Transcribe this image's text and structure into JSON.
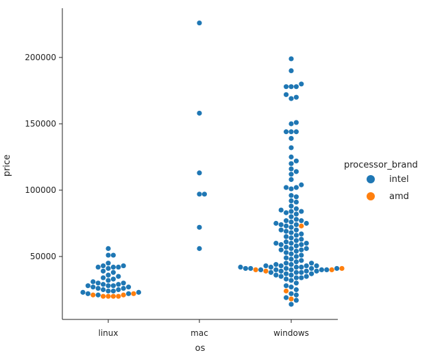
{
  "chart_data": {
    "type": "scatter",
    "subtype": "swarm",
    "title": "",
    "xlabel": "os",
    "ylabel": "price",
    "categories": [
      "linux",
      "mac",
      "windows"
    ],
    "ylim": [
      10000,
      235000
    ],
    "yticks": [
      50000,
      100000,
      150000,
      200000
    ],
    "ytick_labels": [
      "50000",
      "100000",
      "150000",
      "200000"
    ],
    "legend": {
      "title": "processor_brand",
      "position": "right",
      "entries": [
        {
          "name": "intel",
          "color": "#1f77b4"
        },
        {
          "name": "amd",
          "color": "#ff7f0e"
        }
      ]
    },
    "series": [
      {
        "name": "intel",
        "color": "#1f77b4",
        "points": [
          {
            "os": "linux",
            "values": [
              56000,
              51000,
              51000,
              45000,
              43000,
              43000,
              42000,
              42000,
              42000,
              41000,
              39000,
              38000,
              36000,
              35000,
              34000,
              33000,
              32000,
              31000,
              30000,
              30000,
              29000,
              29000,
              28000,
              28000,
              28000,
              27000,
              27000,
              26000,
              26000,
              25000,
              25000,
              24000,
              24000,
              23000,
              23000,
              22000,
              22000,
              21000
            ]
          },
          {
            "os": "mac",
            "values": [
              226000,
              158000,
              113000,
              97000,
              97000,
              72000,
              56000
            ]
          },
          {
            "os": "windows",
            "values": [
              199000,
              190000,
              180000,
              178000,
              178000,
              178000,
              172000,
              170000,
              169000,
              151000,
              150000,
              144000,
              144000,
              144000,
              139000,
              132000,
              125000,
              122000,
              120000,
              116000,
              114000,
              112000,
              108000,
              104000,
              102000,
              102000,
              101000,
              96000,
              95000,
              92000,
              91000,
              88000,
              86000,
              85000,
              84000,
              84000,
              83000,
              82000,
              80000,
              78000,
              77000,
              77000,
              76000,
              75000,
              75000,
              74000,
              74000,
              73000,
              72000,
              70000,
              70000,
              69000,
              68000,
              67000,
              66000,
              65000,
              64000,
              63000,
              62000,
              61000,
              60000,
              60000,
              60000,
              59000,
              59000,
              58000,
              57000,
              56000,
              56000,
              55000,
              55000,
              54000,
              53000,
              52000,
              51000,
              50000,
              49000,
              48000,
              47000,
              46000,
              45000,
              45000,
              44000,
              44000,
              43000,
              43000,
              43000,
              43000,
              42000,
              42000,
              42000,
              42000,
              41000,
              41000,
              41000,
              41000,
              41000,
              40000,
              40000,
              40000,
              40000,
              40000,
              39000,
              39000,
              39000,
              38000,
              38000,
              38000,
              37000,
              37000,
              36000,
              36000,
              35000,
              35000,
              34000,
              34000,
              33000,
              32000,
              30000,
              28000,
              27000,
              25000,
              22000,
              21000,
              19000,
              17000,
              14000
            ]
          }
        ]
      },
      {
        "name": "amd",
        "color": "#ff7f0e",
        "points": [
          {
            "os": "linux",
            "values": [
              22000,
              21000,
              21000,
              20000,
              20000,
              20000,
              20000
            ]
          },
          {
            "os": "mac",
            "values": []
          },
          {
            "os": "windows",
            "values": [
              73000,
              41000,
              40000,
              40000,
              39000,
              24000,
              18000
            ]
          }
        ]
      }
    ]
  }
}
